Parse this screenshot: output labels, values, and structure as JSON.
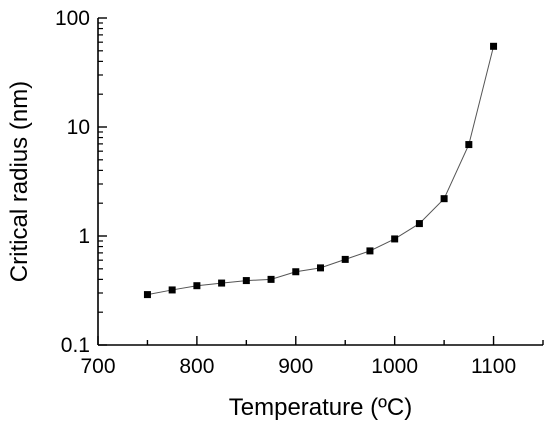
{
  "chart_data": {
    "type": "scatter",
    "xlabel": "Temperature (ºC)",
    "ylabel": "Critical radius (nm)",
    "xlim": [
      700,
      1150
    ],
    "ylim": [
      0.1,
      100
    ],
    "yscale": "log",
    "x_ticks": [
      700,
      800,
      900,
      1000,
      1100
    ],
    "x_tick_labels": [
      "700",
      "800",
      "900",
      "1000",
      "1100"
    ],
    "y_ticks": [
      0.1,
      1,
      10,
      100
    ],
    "y_tick_labels": [
      "0.1",
      "1",
      "10",
      "100"
    ],
    "grid": false,
    "legend": "none",
    "marker": "square",
    "line_connected": true,
    "colors": {
      "marker": "#000000",
      "line": "#555555",
      "axis": "#000000"
    },
    "series": [
      {
        "x": [
          750,
          775,
          800,
          825,
          850,
          875,
          900,
          925,
          950,
          975,
          1000,
          1025,
          1050,
          1075,
          1100
        ],
        "values": [
          0.29,
          0.32,
          0.35,
          0.37,
          0.39,
          0.4,
          0.47,
          0.51,
          0.61,
          0.73,
          0.94,
          1.3,
          2.2,
          6.9,
          55
        ]
      }
    ]
  }
}
